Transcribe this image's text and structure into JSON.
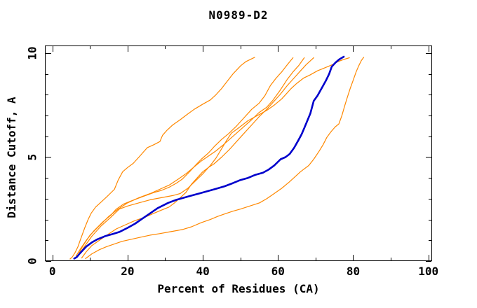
{
  "title": "N0989-D2",
  "chart_data": {
    "type": "line",
    "title": "N0989-D2",
    "xlabel": "Percent of Residues (CA)",
    "ylabel": "Distance Cutoff, A",
    "xlim": [
      -2,
      101
    ],
    "ylim": [
      0,
      10.37
    ],
    "x_major_ticks": [
      0,
      20,
      40,
      60,
      80,
      100
    ],
    "x_minor_ticks": [
      10,
      30,
      50,
      70,
      90
    ],
    "x_tick_labels": [
      "0",
      "20",
      "40",
      "60",
      "80",
      "100"
    ],
    "y_major_ticks": [
      0,
      5,
      10
    ],
    "y_minor_ticks": [
      1,
      2,
      3,
      4,
      6,
      7,
      8,
      9
    ],
    "y_tick_labels": [
      "0",
      "5",
      "10"
    ],
    "grid": false,
    "legend": "none",
    "colors": {
      "highlight": "#0000cc",
      "default": "#ff8800",
      "axis": "#000000",
      "background": "#ffffff"
    },
    "series": [
      {
        "name": "orange-1",
        "color_role": "default",
        "line_width": 1.2,
        "points": [
          [
            4.7,
            0.1
          ],
          [
            5.3,
            0.2
          ],
          [
            6.0,
            0.4
          ],
          [
            6.8,
            0.7
          ],
          [
            7.6,
            1.1
          ],
          [
            8.6,
            1.6
          ],
          [
            9.5,
            2.0
          ],
          [
            10.3,
            2.3
          ],
          [
            11.5,
            2.6
          ],
          [
            13,
            2.85
          ],
          [
            14.5,
            3.1
          ],
          [
            16.5,
            3.45
          ],
          [
            17.5,
            3.9
          ],
          [
            18.7,
            4.3
          ],
          [
            20,
            4.5
          ],
          [
            21.5,
            4.7
          ],
          [
            23,
            5.0
          ],
          [
            25.2,
            5.45
          ],
          [
            27,
            5.6
          ],
          [
            28.6,
            5.75
          ],
          [
            29.3,
            6.05
          ],
          [
            30.5,
            6.3
          ],
          [
            32,
            6.55
          ],
          [
            34,
            6.8
          ],
          [
            35.8,
            7.05
          ],
          [
            37.7,
            7.3
          ],
          [
            40,
            7.55
          ],
          [
            42,
            7.75
          ],
          [
            43.5,
            8.0
          ],
          [
            45,
            8.3
          ],
          [
            46.5,
            8.65
          ],
          [
            48,
            9.0
          ],
          [
            50.1,
            9.4
          ],
          [
            51.5,
            9.6
          ],
          [
            53.8,
            9.8
          ]
        ]
      },
      {
        "name": "orange-2",
        "color_role": "default",
        "line_width": 1.2,
        "points": [
          [
            6.3,
            0.25
          ],
          [
            7.5,
            0.6
          ],
          [
            9,
            1.0
          ],
          [
            11,
            1.45
          ],
          [
            13.5,
            1.9
          ],
          [
            15.5,
            2.2
          ],
          [
            17,
            2.5
          ],
          [
            19,
            2.75
          ],
          [
            21,
            2.9
          ],
          [
            24,
            3.1
          ],
          [
            27,
            3.3
          ],
          [
            29,
            3.4
          ],
          [
            31,
            3.55
          ],
          [
            33,
            3.75
          ],
          [
            34.6,
            3.95
          ],
          [
            36.5,
            4.3
          ],
          [
            38,
            4.6
          ],
          [
            39.6,
            4.9
          ],
          [
            41.5,
            5.2
          ],
          [
            43,
            5.5
          ],
          [
            45,
            5.85
          ],
          [
            47,
            6.15
          ],
          [
            49,
            6.5
          ],
          [
            51,
            6.9
          ],
          [
            53,
            7.3
          ],
          [
            55,
            7.6
          ],
          [
            56.5,
            7.95
          ],
          [
            58,
            8.45
          ],
          [
            59.5,
            8.8
          ],
          [
            61,
            9.1
          ],
          [
            62.5,
            9.45
          ],
          [
            64,
            9.78
          ]
        ]
      },
      {
        "name": "orange-3",
        "color_role": "default",
        "line_width": 1.2,
        "points": [
          [
            6.6,
            0.2
          ],
          [
            8,
            0.7
          ],
          [
            10,
            1.25
          ],
          [
            12.5,
            1.7
          ],
          [
            15,
            2.15
          ],
          [
            17.5,
            2.5
          ],
          [
            20,
            2.8
          ],
          [
            23,
            3.05
          ],
          [
            26,
            3.25
          ],
          [
            28.5,
            3.45
          ],
          [
            31,
            3.65
          ],
          [
            33.5,
            3.95
          ],
          [
            35.5,
            4.2
          ],
          [
            37.5,
            4.5
          ],
          [
            39.5,
            4.8
          ],
          [
            41.5,
            5.05
          ],
          [
            43.5,
            5.3
          ],
          [
            45.5,
            5.6
          ],
          [
            48,
            6.0
          ],
          [
            50.5,
            6.4
          ],
          [
            53,
            6.8
          ],
          [
            55,
            7.15
          ],
          [
            57,
            7.4
          ],
          [
            58.5,
            7.7
          ],
          [
            60.5,
            8.2
          ],
          [
            62.5,
            8.75
          ],
          [
            64,
            9.1
          ],
          [
            65.5,
            9.4
          ],
          [
            67,
            9.78
          ]
        ]
      },
      {
        "name": "orange-4",
        "color_role": "default",
        "line_width": 1.2,
        "points": [
          [
            7.8,
            0.15
          ],
          [
            9,
            0.45
          ],
          [
            10.5,
            0.75
          ],
          [
            12.5,
            1.0
          ],
          [
            14.5,
            1.25
          ],
          [
            17,
            1.55
          ],
          [
            19.5,
            1.75
          ],
          [
            22,
            1.95
          ],
          [
            24.5,
            2.1
          ],
          [
            27,
            2.3
          ],
          [
            29,
            2.45
          ],
          [
            31,
            2.6
          ],
          [
            32.5,
            2.8
          ],
          [
            34,
            3.05
          ],
          [
            35.5,
            3.3
          ],
          [
            37,
            3.7
          ],
          [
            38.5,
            4.0
          ],
          [
            40,
            4.3
          ],
          [
            41.5,
            4.5
          ],
          [
            43,
            4.68
          ],
          [
            45,
            5.0
          ],
          [
            47,
            5.35
          ],
          [
            49,
            5.75
          ],
          [
            51,
            6.15
          ],
          [
            53,
            6.55
          ],
          [
            55,
            6.95
          ],
          [
            57,
            7.3
          ],
          [
            58.5,
            7.6
          ],
          [
            60.5,
            8.0
          ],
          [
            62.5,
            8.45
          ],
          [
            64.5,
            8.85
          ],
          [
            66,
            9.15
          ],
          [
            67.5,
            9.45
          ],
          [
            68.7,
            9.65
          ],
          [
            69.5,
            9.78
          ]
        ]
      },
      {
        "name": "orange-5",
        "color_role": "default",
        "line_width": 1.2,
        "points": [
          [
            6.9,
            0.25
          ],
          [
            8.5,
            0.7
          ],
          [
            10.5,
            1.2
          ],
          [
            13,
            1.7
          ],
          [
            15.5,
            2.1
          ],
          [
            17.8,
            2.5
          ],
          [
            20,
            2.65
          ],
          [
            23,
            2.8
          ],
          [
            26,
            2.95
          ],
          [
            29,
            3.05
          ],
          [
            32,
            3.15
          ],
          [
            34,
            3.25
          ],
          [
            36,
            3.5
          ],
          [
            38,
            3.85
          ],
          [
            40,
            4.2
          ],
          [
            42,
            4.6
          ],
          [
            43.5,
            4.95
          ],
          [
            45,
            5.4
          ],
          [
            46.5,
            5.85
          ],
          [
            47.6,
            6.15
          ],
          [
            49.5,
            6.4
          ],
          [
            52,
            6.75
          ],
          [
            54.5,
            7.0
          ],
          [
            57,
            7.25
          ],
          [
            59,
            7.5
          ],
          [
            61,
            7.8
          ],
          [
            63.5,
            8.3
          ],
          [
            65,
            8.55
          ],
          [
            66.8,
            8.8
          ],
          [
            68.5,
            8.95
          ],
          [
            70.5,
            9.15
          ],
          [
            72.5,
            9.3
          ],
          [
            74.5,
            9.45
          ],
          [
            76,
            9.6
          ],
          [
            77.5,
            9.7
          ],
          [
            79,
            9.78
          ]
        ]
      },
      {
        "name": "orange-6",
        "color_role": "default",
        "line_width": 1.2,
        "points": [
          [
            8.8,
            0.12
          ],
          [
            10.5,
            0.35
          ],
          [
            12.5,
            0.55
          ],
          [
            14.5,
            0.7
          ],
          [
            16.5,
            0.82
          ],
          [
            18.5,
            0.95
          ],
          [
            21,
            1.05
          ],
          [
            23.5,
            1.15
          ],
          [
            26,
            1.25
          ],
          [
            28.5,
            1.32
          ],
          [
            31,
            1.4
          ],
          [
            34.6,
            1.52
          ],
          [
            37,
            1.65
          ],
          [
            39.6,
            1.85
          ],
          [
            42,
            2.0
          ],
          [
            44,
            2.15
          ],
          [
            46,
            2.28
          ],
          [
            48,
            2.4
          ],
          [
            50,
            2.5
          ],
          [
            52,
            2.62
          ],
          [
            55.1,
            2.8
          ],
          [
            57,
            3.0
          ],
          [
            59,
            3.25
          ],
          [
            61,
            3.5
          ],
          [
            63,
            3.8
          ],
          [
            64.5,
            4.05
          ],
          [
            66,
            4.3
          ],
          [
            68.2,
            4.6
          ],
          [
            69.5,
            4.9
          ],
          [
            71,
            5.3
          ],
          [
            72,
            5.6
          ],
          [
            73,
            5.95
          ],
          [
            74,
            6.2
          ],
          [
            75.2,
            6.45
          ],
          [
            76.2,
            6.6
          ],
          [
            77,
            7.0
          ],
          [
            77.8,
            7.5
          ],
          [
            78.4,
            7.85
          ],
          [
            79.2,
            8.3
          ],
          [
            80,
            8.7
          ],
          [
            80.8,
            9.1
          ],
          [
            81.5,
            9.4
          ],
          [
            82.2,
            9.65
          ],
          [
            82.8,
            9.8
          ]
        ]
      },
      {
        "name": "highlighted-blue",
        "color_role": "highlight",
        "line_width": 2.6,
        "points": [
          [
            5.8,
            0.12
          ],
          [
            6.5,
            0.2
          ],
          [
            7.2,
            0.35
          ],
          [
            8.2,
            0.55
          ],
          [
            9.0,
            0.7
          ],
          [
            10.5,
            0.9
          ],
          [
            12,
            1.05
          ],
          [
            14,
            1.2
          ],
          [
            16,
            1.3
          ],
          [
            17.8,
            1.4
          ],
          [
            20,
            1.6
          ],
          [
            22,
            1.8
          ],
          [
            24,
            2.05
          ],
          [
            26,
            2.3
          ],
          [
            28,
            2.55
          ],
          [
            30.8,
            2.8
          ],
          [
            33,
            2.95
          ],
          [
            35,
            3.05
          ],
          [
            37,
            3.15
          ],
          [
            39,
            3.25
          ],
          [
            41,
            3.35
          ],
          [
            43,
            3.45
          ],
          [
            45.8,
            3.6
          ],
          [
            48,
            3.75
          ],
          [
            50,
            3.9
          ],
          [
            52,
            4.0
          ],
          [
            54,
            4.15
          ],
          [
            56,
            4.25
          ],
          [
            57.5,
            4.4
          ],
          [
            59,
            4.6
          ],
          [
            60.7,
            4.9
          ],
          [
            62,
            5.0
          ],
          [
            63.1,
            5.15
          ],
          [
            64.3,
            5.45
          ],
          [
            65.4,
            5.8
          ],
          [
            66.3,
            6.1
          ],
          [
            67,
            6.4
          ],
          [
            67.8,
            6.75
          ],
          [
            68.6,
            7.1
          ],
          [
            69.5,
            7.7
          ],
          [
            70.5,
            7.95
          ],
          [
            71.9,
            8.4
          ],
          [
            72.8,
            8.7
          ],
          [
            73.6,
            9.0
          ],
          [
            74.3,
            9.35
          ],
          [
            75.3,
            9.55
          ],
          [
            76.3,
            9.7
          ],
          [
            77.5,
            9.83
          ]
        ]
      }
    ]
  }
}
